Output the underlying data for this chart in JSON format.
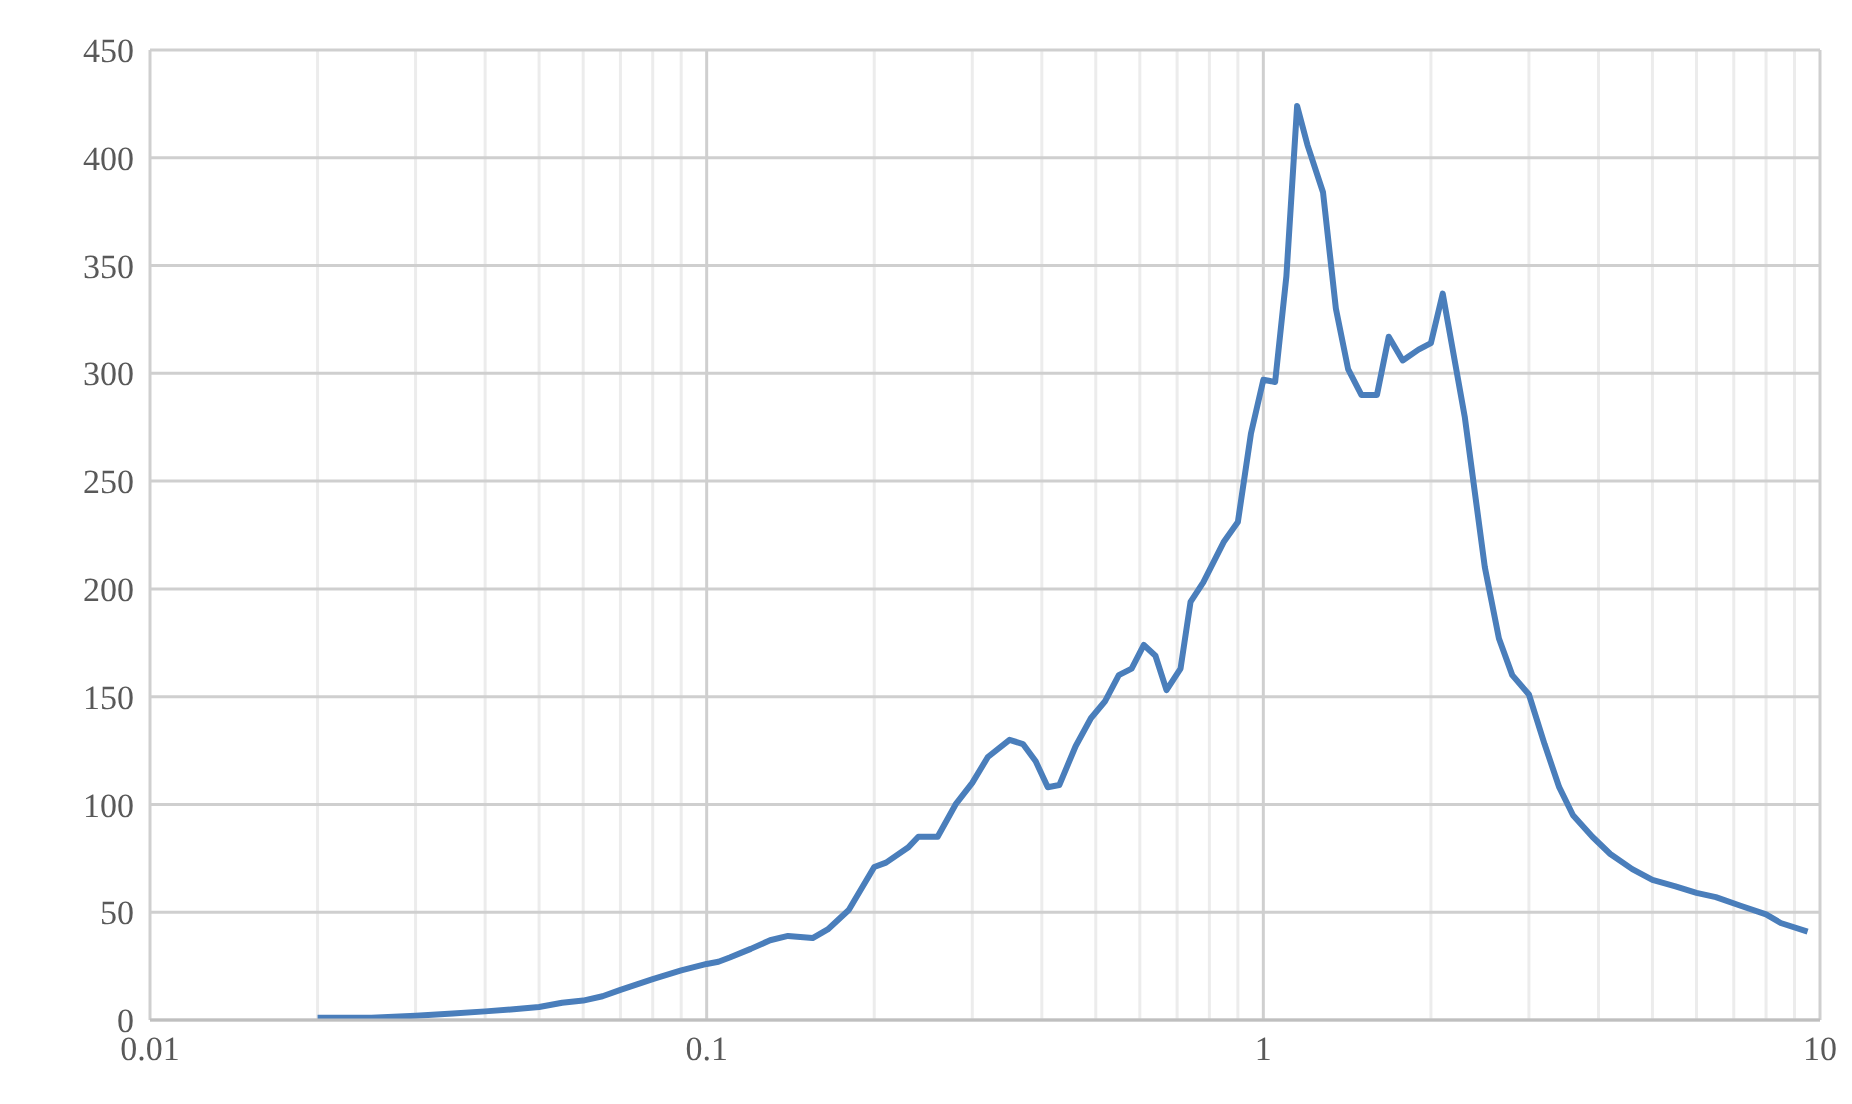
{
  "chart_data": {
    "type": "line",
    "log": "x",
    "grid": true,
    "marker": "none",
    "line_style": "solid",
    "xlim": [
      0.01,
      10
    ],
    "xticks": [
      0.01,
      0.1,
      1,
      10
    ],
    "ylim": [
      0,
      450
    ],
    "yticks": [
      0,
      50,
      100,
      150,
      200,
      250,
      300,
      350,
      400,
      450
    ],
    "series": [
      {
        "color": "#4a7ebb",
        "x": [
          0.02,
          0.025,
          0.03,
          0.035,
          0.04,
          0.045,
          0.05,
          0.055,
          0.06,
          0.065,
          0.07,
          0.08,
          0.09,
          0.1,
          0.105,
          0.11,
          0.12,
          0.13,
          0.14,
          0.155,
          0.165,
          0.18,
          0.2,
          0.21,
          0.23,
          0.24,
          0.26,
          0.28,
          0.3,
          0.32,
          0.35,
          0.37,
          0.39,
          0.41,
          0.43,
          0.46,
          0.49,
          0.52,
          0.55,
          0.58,
          0.61,
          0.64,
          0.67,
          0.71,
          0.74,
          0.78,
          0.85,
          0.9,
          0.95,
          1.0,
          1.05,
          1.1,
          1.15,
          1.2,
          1.28,
          1.35,
          1.42,
          1.5,
          1.6,
          1.68,
          1.78,
          1.9,
          2.0,
          2.1,
          2.3,
          2.5,
          2.65,
          2.8,
          3.0,
          3.2,
          3.4,
          3.6,
          3.9,
          4.2,
          4.6,
          5.0,
          5.5,
          6.0,
          6.5,
          7.2,
          8.0,
          8.5,
          9.5
        ],
        "values": [
          1,
          1,
          2,
          3,
          4,
          5,
          6,
          8,
          9,
          11,
          14,
          19,
          23,
          26,
          27,
          29,
          33,
          37,
          39,
          38,
          42,
          51,
          71,
          73,
          80,
          85,
          85,
          100,
          110,
          122,
          130,
          128,
          120,
          108,
          109,
          127,
          140,
          148,
          160,
          163,
          174,
          169,
          153,
          163,
          194,
          203,
          222,
          231,
          272,
          297,
          296,
          345,
          424,
          406,
          384,
          330,
          302,
          290,
          290,
          317,
          306,
          311,
          314,
          337,
          280,
          210,
          177,
          160,
          151,
          128,
          108,
          95,
          85,
          77,
          70,
          65,
          62,
          59,
          57,
          53,
          49,
          45,
          41
        ]
      }
    ]
  }
}
